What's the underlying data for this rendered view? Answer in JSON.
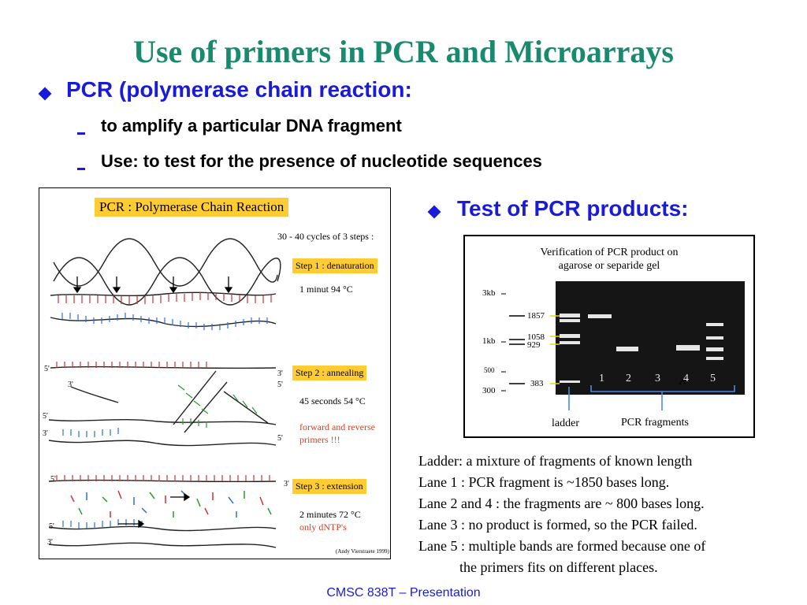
{
  "title": "Use of primers in PCR and Microarrays",
  "bullets": {
    "pcr": "PCR (polymerase chain reaction:",
    "sub1": "to amplify a particular DNA fragment",
    "sub2": "Use: to test for the presence of nucleotide sequences",
    "test": "Test of PCR products:"
  },
  "pcr_figure": {
    "header": "PCR : Polymerase Chain Reaction",
    "cycles": "30 - 40 cycles of 3 steps :",
    "steps": [
      {
        "label": "Step 1 : denaturation",
        "note1": "1 minut 94 °C",
        "note2": "",
        "note3": ""
      },
      {
        "label": "Step 2 : annealing",
        "note1": "45 seconds 54 °C",
        "note2": "forward and reverse",
        "note3": "primers !!!"
      },
      {
        "label": "Step 3 : extension",
        "note1": "2 minutes 72 °C",
        "note2": "only dNTP's",
        "note3": ""
      }
    ],
    "credit": "(Andy Vierstraete 1999)",
    "strand_end_5": "5'",
    "strand_end_3": "3'"
  },
  "gel_figure": {
    "title_line1": "Verification of  PCR product on",
    "title_line2": "agarose or separide gel",
    "scale_3kb": "3kb",
    "scale_1kb": "1kb",
    "scale_500": "500",
    "scale_300": "300",
    "marker_1857": "1857",
    "marker_1058": "1058",
    "marker_929": "929",
    "marker_383": "383",
    "lanes": [
      "1",
      "2",
      "3",
      "4",
      "5"
    ],
    "ladder_label": "ladder",
    "fragments_label": "PCR fragments"
  },
  "notes": [
    "Ladder: a mixture of fragments of known length",
    "Lane 1 : PCR fragment is ~1850 bases long.",
    "Lane 2 and 4 : the fragments are ~ 800 bases long.",
    "Lane 3 : no product is formed, so the PCR failed.",
    "Lane 5 : multiple bands are formed because one of",
    "the primers fits on different places."
  ],
  "footer": "CMSC 838T – Presentation",
  "colors": {
    "title": "#1a8a6e",
    "accent": "#1a1ad9",
    "step_label": "#ffcc33",
    "gel": "#151515",
    "band": "#e6e6e6"
  }
}
